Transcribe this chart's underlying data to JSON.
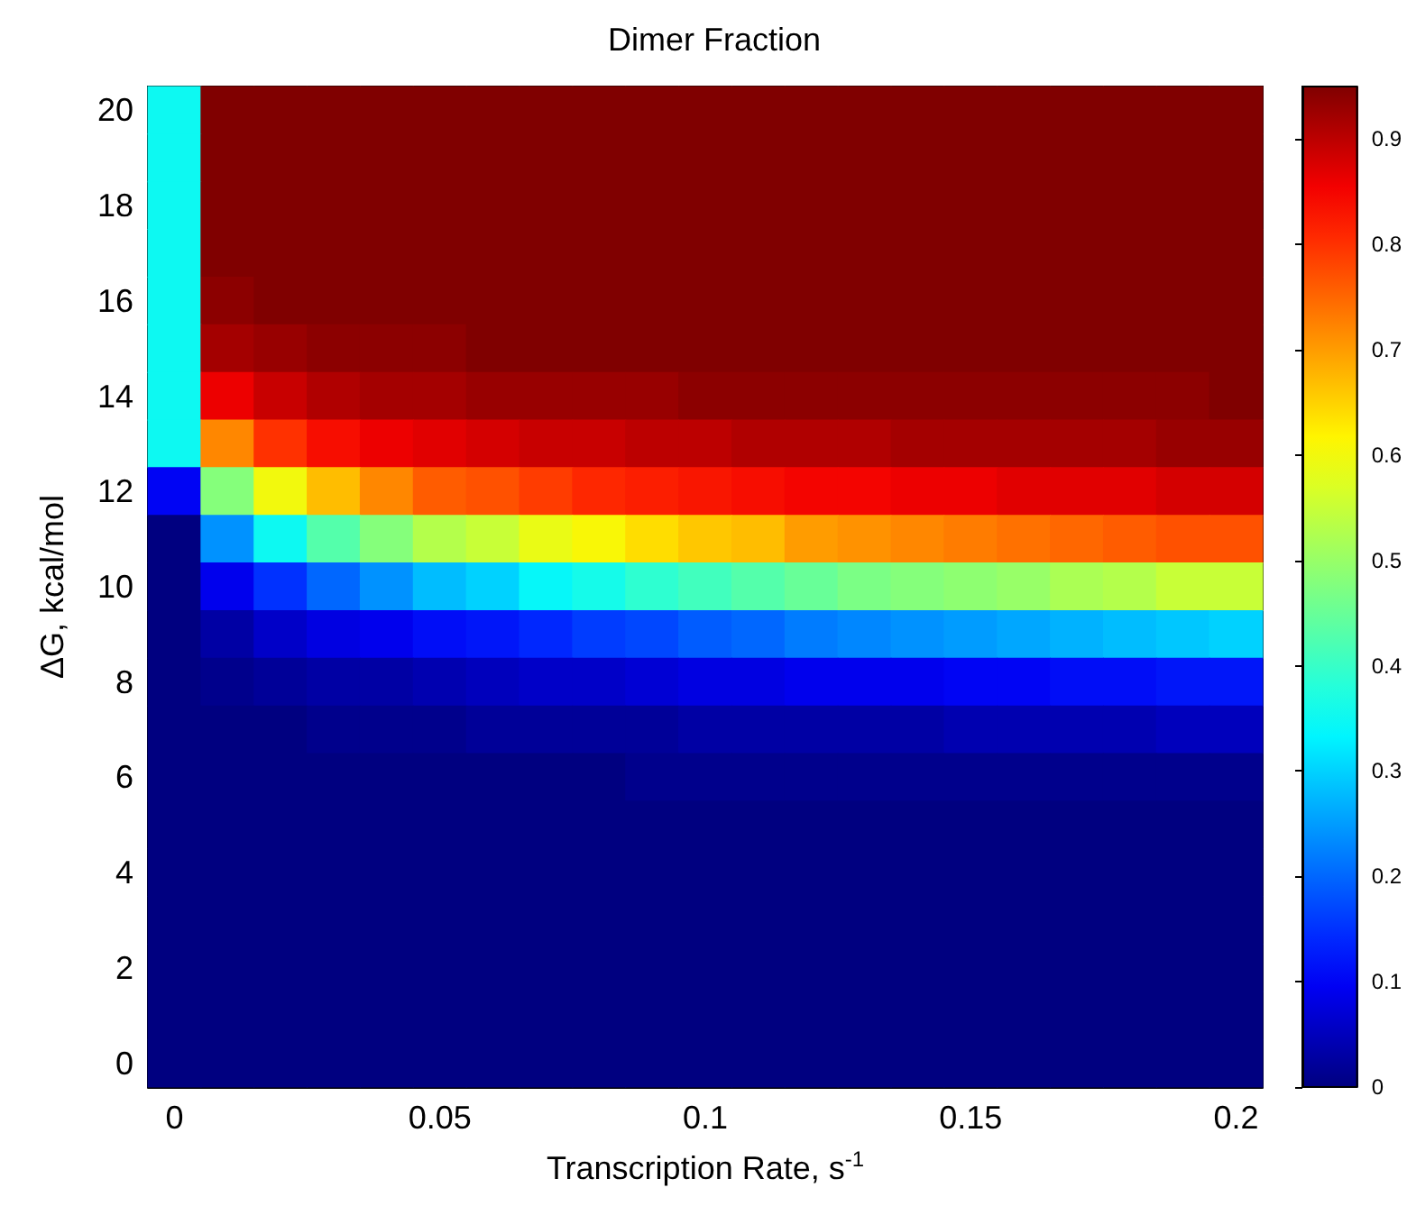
{
  "chart_data": {
    "type": "heatmap",
    "title": "Dimer Fraction",
    "xlabel": "Transcription Rate, s$^{-1}$",
    "ylabel": "ΔG, kcal/mol",
    "categories": [
      "0",
      null,
      null,
      null,
      null,
      "0.05",
      null,
      null,
      null,
      null,
      "0.1",
      null,
      null,
      null,
      null,
      "0.15",
      null,
      null,
      null,
      null,
      "0.2"
    ],
    "y_categories": [
      "20",
      null,
      "18",
      null,
      "16",
      null,
      "14",
      null,
      "12",
      null,
      "10",
      null,
      "8",
      null,
      "6",
      null,
      "4",
      null,
      "2",
      null,
      "0"
    ],
    "cells": [
      [
        0.35,
        0.95,
        0.95,
        0.95,
        0.95,
        0.95,
        0.95,
        0.95,
        0.95,
        0.95,
        0.95,
        0.95,
        0.95,
        0.95,
        0.95,
        0.95,
        0.95,
        0.95,
        0.95,
        0.95,
        0.95
      ],
      [
        0.35,
        0.95,
        0.95,
        0.95,
        0.95,
        0.95,
        0.95,
        0.95,
        0.95,
        0.95,
        0.95,
        0.95,
        0.95,
        0.95,
        0.95,
        0.95,
        0.95,
        0.95,
        0.95,
        0.95,
        0.95
      ],
      [
        0.35,
        0.95,
        0.95,
        0.95,
        0.95,
        0.95,
        0.95,
        0.95,
        0.95,
        0.95,
        0.95,
        0.95,
        0.95,
        0.95,
        0.95,
        0.95,
        0.95,
        0.95,
        0.95,
        0.95,
        0.95
      ],
      [
        0.35,
        0.95,
        0.95,
        0.95,
        0.95,
        0.95,
        0.95,
        0.95,
        0.95,
        0.95,
        0.95,
        0.95,
        0.95,
        0.95,
        0.95,
        0.95,
        0.95,
        0.95,
        0.95,
        0.95,
        0.95
      ],
      [
        0.35,
        0.94,
        0.95,
        0.95,
        0.95,
        0.95,
        0.95,
        0.95,
        0.95,
        0.95,
        0.95,
        0.95,
        0.95,
        0.95,
        0.95,
        0.95,
        0.95,
        0.95,
        0.95,
        0.95,
        0.95
      ],
      [
        0.35,
        0.92,
        0.93,
        0.94,
        0.94,
        0.94,
        0.95,
        0.95,
        0.95,
        0.95,
        0.95,
        0.95,
        0.95,
        0.95,
        0.95,
        0.95,
        0.95,
        0.95,
        0.95,
        0.95,
        0.95
      ],
      [
        0.35,
        0.86,
        0.89,
        0.91,
        0.92,
        0.92,
        0.93,
        0.93,
        0.93,
        0.93,
        0.94,
        0.94,
        0.94,
        0.94,
        0.94,
        0.94,
        0.94,
        0.94,
        0.94,
        0.94,
        0.95
      ],
      [
        0.35,
        0.72,
        0.8,
        0.84,
        0.86,
        0.87,
        0.88,
        0.89,
        0.89,
        0.9,
        0.9,
        0.91,
        0.91,
        0.91,
        0.92,
        0.92,
        0.92,
        0.92,
        0.92,
        0.93,
        0.93
      ],
      [
        0.1,
        0.48,
        0.6,
        0.67,
        0.72,
        0.76,
        0.77,
        0.79,
        0.81,
        0.82,
        0.83,
        0.84,
        0.85,
        0.85,
        0.86,
        0.86,
        0.87,
        0.87,
        0.87,
        0.88,
        0.88
      ],
      [
        0,
        0.24,
        0.35,
        0.43,
        0.48,
        0.53,
        0.55,
        0.59,
        0.61,
        0.64,
        0.66,
        0.67,
        0.7,
        0.71,
        0.72,
        0.73,
        0.74,
        0.75,
        0.76,
        0.77,
        0.77
      ],
      [
        0,
        0.09,
        0.15,
        0.2,
        0.24,
        0.28,
        0.3,
        0.34,
        0.36,
        0.39,
        0.41,
        0.43,
        0.45,
        0.47,
        0.48,
        0.49,
        0.5,
        0.52,
        0.53,
        0.55,
        0.55
      ],
      [
        0,
        0.03,
        0.06,
        0.08,
        0.09,
        0.11,
        0.12,
        0.14,
        0.16,
        0.17,
        0.19,
        0.2,
        0.22,
        0.23,
        0.24,
        0.25,
        0.26,
        0.27,
        0.28,
        0.29,
        0.3
      ],
      [
        0,
        0.01,
        0.02,
        0.03,
        0.03,
        0.04,
        0.05,
        0.06,
        0.06,
        0.07,
        0.08,
        0.08,
        0.09,
        0.09,
        0.09,
        0.1,
        0.1,
        0.11,
        0.11,
        0.12,
        0.12
      ],
      [
        0,
        0,
        0,
        0.01,
        0.01,
        0.01,
        0.02,
        0.02,
        0.02,
        0.02,
        0.03,
        0.03,
        0.03,
        0.03,
        0.03,
        0.04,
        0.04,
        0.04,
        0.04,
        0.05,
        0.05
      ],
      [
        0,
        0,
        0,
        0,
        0,
        0,
        0,
        0,
        0,
        0.01,
        0.01,
        0.01,
        0.01,
        0.01,
        0.01,
        0.01,
        0.01,
        0.01,
        0.01,
        0.01,
        0.01
      ],
      [
        0,
        0,
        0,
        0,
        0,
        0,
        0,
        0,
        0,
        0,
        0,
        0,
        0,
        0,
        0,
        0,
        0,
        0,
        0,
        0,
        0
      ],
      [
        0,
        0,
        0,
        0,
        0,
        0,
        0,
        0,
        0,
        0,
        0,
        0,
        0,
        0,
        0,
        0,
        0,
        0,
        0,
        0,
        0
      ],
      [
        0,
        0,
        0,
        0,
        0,
        0,
        0,
        0,
        0,
        0,
        0,
        0,
        0,
        0,
        0,
        0,
        0,
        0,
        0,
        0,
        0
      ],
      [
        0,
        0,
        0,
        0,
        0,
        0,
        0,
        0,
        0,
        0,
        0,
        0,
        0,
        0,
        0,
        0,
        0,
        0,
        0,
        0,
        0
      ],
      [
        0,
        0,
        0,
        0,
        0,
        0,
        0,
        0,
        0,
        0,
        0,
        0,
        0,
        0,
        0,
        0,
        0,
        0,
        0,
        0,
        0
      ],
      [
        0,
        0,
        0,
        0,
        0,
        0,
        0,
        0,
        0,
        0,
        0,
        0,
        0,
        0,
        0,
        0,
        0,
        0,
        0,
        0,
        0
      ]
    ],
    "clim": [
      0,
      0.95
    ],
    "cticks": [
      0,
      0.1,
      0.2,
      0.3,
      0.4,
      0.5,
      0.6,
      0.7,
      0.8,
      0.9
    ]
  }
}
